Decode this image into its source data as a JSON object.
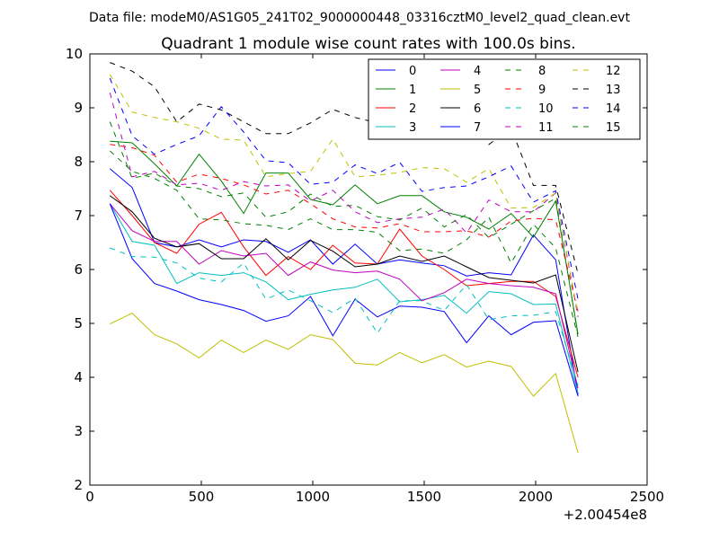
{
  "chart_data": {
    "type": "line",
    "suptitle": "Data file: modeM0/AS1G05_241T02_9000000448_03316cztM0_level2_quad_clean.evt",
    "title": "Quadrant 1 module wise count rates with 100.0s bins.",
    "xlabel": "",
    "ylabel": "",
    "x_offset_label": "+2.00454e8",
    "xlim": [
      0,
      2500
    ],
    "ylim": [
      2,
      10
    ],
    "xticks": [
      0,
      500,
      1000,
      1500,
      2000,
      2500
    ],
    "yticks": [
      2,
      3,
      4,
      5,
      6,
      7,
      8,
      9,
      10
    ],
    "x": [
      90,
      190,
      290,
      390,
      490,
      590,
      690,
      790,
      890,
      990,
      1090,
      1190,
      1290,
      1390,
      1490,
      1590,
      1690,
      1790,
      1890,
      1990,
      2090,
      2190
    ],
    "legend_position": "top-right",
    "series": [
      {
        "name": "0",
        "color": "#0000ff",
        "dash": "solid",
        "values": [
          7.87,
          7.52,
          6.5,
          6.42,
          6.55,
          6.42,
          6.55,
          6.52,
          6.32,
          6.55,
          6.1,
          6.47,
          6.1,
          6.18,
          6.12,
          6.07,
          5.88,
          5.94,
          5.9,
          6.64,
          6.18,
          3.68
        ]
      },
      {
        "name": "1",
        "color": "#008000",
        "dash": "solid",
        "values": [
          8.38,
          8.35,
          7.96,
          7.55,
          8.14,
          7.64,
          7.04,
          7.79,
          7.79,
          7.3,
          7.2,
          7.57,
          7.22,
          7.37,
          7.37,
          7.07,
          6.97,
          6.75,
          7.04,
          6.6,
          7.27,
          4.8
        ]
      },
      {
        "name": "2",
        "color": "#ff0000",
        "dash": "solid",
        "values": [
          7.47,
          7.0,
          6.5,
          6.3,
          6.84,
          7.06,
          6.42,
          5.89,
          6.24,
          6.0,
          6.45,
          6.12,
          6.1,
          6.75,
          6.25,
          6.0,
          5.7,
          5.74,
          5.78,
          5.78,
          5.5,
          4.0
        ]
      },
      {
        "name": "3",
        "color": "#00bfbf",
        "dash": "solid",
        "values": [
          7.22,
          6.52,
          6.45,
          5.74,
          5.94,
          5.89,
          5.94,
          5.77,
          5.44,
          5.54,
          5.62,
          5.67,
          5.82,
          5.4,
          5.44,
          5.52,
          5.19,
          5.59,
          5.55,
          5.35,
          5.36,
          3.7
        ]
      },
      {
        "name": "4",
        "color": "#bf00bf",
        "dash": "solid",
        "values": [
          7.22,
          6.72,
          6.52,
          6.52,
          6.1,
          6.35,
          6.25,
          6.3,
          5.89,
          6.14,
          5.99,
          5.94,
          5.97,
          5.82,
          5.42,
          5.57,
          5.82,
          5.74,
          5.7,
          5.67,
          5.55,
          3.8
        ]
      },
      {
        "name": "5",
        "color": "#bfbf00",
        "dash": "solid",
        "values": [
          4.99,
          5.19,
          4.79,
          4.62,
          4.36,
          4.69,
          4.46,
          4.69,
          4.52,
          4.79,
          4.7,
          4.26,
          4.23,
          4.46,
          4.27,
          4.42,
          4.19,
          4.3,
          4.2,
          3.65,
          4.07,
          2.6
        ]
      },
      {
        "name": "6",
        "color": "#000000",
        "dash": "solid",
        "values": [
          7.37,
          7.07,
          6.58,
          6.42,
          6.48,
          6.2,
          6.2,
          6.57,
          6.18,
          6.54,
          6.34,
          6.05,
          6.1,
          6.25,
          6.15,
          6.25,
          6.05,
          5.85,
          5.8,
          5.75,
          5.9,
          4.1
        ]
      },
      {
        "name": "7",
        "color": "#0000ff",
        "dash": "solid",
        "values": [
          7.22,
          6.2,
          5.74,
          5.6,
          5.44,
          5.35,
          5.24,
          5.04,
          5.14,
          5.5,
          4.77,
          5.45,
          5.12,
          5.32,
          5.3,
          5.22,
          4.64,
          5.14,
          4.79,
          5.02,
          5.05,
          3.65
        ]
      },
      {
        "name": "8",
        "color": "#008000",
        "dash": "dashed",
        "values": [
          8.74,
          7.69,
          7.79,
          7.55,
          7.5,
          7.35,
          7.42,
          6.97,
          7.07,
          7.4,
          7.17,
          7.19,
          6.98,
          6.92,
          7.14,
          6.79,
          7.02,
          6.59,
          6.84,
          7.09,
          7.32,
          4.77
        ]
      },
      {
        "name": "9",
        "color": "#ff0000",
        "dash": "dashed",
        "values": [
          8.32,
          8.26,
          8.12,
          7.62,
          7.77,
          7.69,
          7.57,
          7.4,
          7.47,
          7.22,
          6.94,
          6.79,
          6.77,
          6.85,
          6.7,
          6.7,
          6.72,
          6.6,
          6.9,
          6.95,
          6.92,
          5.22
        ]
      },
      {
        "name": "10",
        "color": "#00bfbf",
        "dash": "dashed",
        "values": [
          6.4,
          6.24,
          6.23,
          6.12,
          5.84,
          5.77,
          6.12,
          5.45,
          5.62,
          5.42,
          5.2,
          5.47,
          4.82,
          5.42,
          5.42,
          5.24,
          5.72,
          5.07,
          5.14,
          5.15,
          5.22,
          3.85
        ]
      },
      {
        "name": "11",
        "color": "#bf00bf",
        "dash": "dashed",
        "values": [
          9.28,
          7.72,
          7.82,
          7.57,
          7.6,
          7.47,
          7.63,
          7.55,
          7.57,
          7.27,
          7.47,
          7.07,
          6.87,
          6.94,
          6.97,
          7.12,
          6.68,
          7.29,
          7.07,
          7.07,
          7.42,
          5.12
        ]
      },
      {
        "name": "12",
        "color": "#bfbf00",
        "dash": "dashed",
        "values": [
          9.62,
          8.92,
          8.82,
          8.74,
          8.62,
          8.42,
          8.4,
          7.72,
          7.78,
          7.82,
          8.42,
          7.72,
          7.75,
          7.8,
          7.89,
          7.87,
          7.62,
          7.87,
          7.14,
          7.15,
          7.42,
          5.17
        ]
      },
      {
        "name": "13",
        "color": "#000000",
        "dash": "dashed",
        "values": [
          9.84,
          9.68,
          9.39,
          8.74,
          9.07,
          8.96,
          8.74,
          8.52,
          8.52,
          8.72,
          8.97,
          8.82,
          8.72,
          8.62,
          8.9,
          8.6,
          9.22,
          8.32,
          8.62,
          7.56,
          7.56,
          5.92
        ]
      },
      {
        "name": "14",
        "color": "#0000ff",
        "dash": "dashed",
        "values": [
          9.55,
          8.48,
          8.14,
          8.32,
          8.48,
          9.02,
          8.55,
          8.02,
          7.98,
          7.58,
          7.62,
          7.94,
          7.78,
          7.99,
          7.45,
          7.52,
          7.55,
          7.72,
          7.92,
          7.25,
          7.46,
          5.45
        ]
      },
      {
        "name": "15",
        "color": "#008000",
        "dash": "dashed",
        "values": [
          8.2,
          7.82,
          7.69,
          7.47,
          6.94,
          6.92,
          6.85,
          6.82,
          6.74,
          6.94,
          6.74,
          6.74,
          6.69,
          6.35,
          6.38,
          6.3,
          6.55,
          6.97,
          6.12,
          6.84,
          6.4,
          4.75
        ]
      }
    ]
  }
}
